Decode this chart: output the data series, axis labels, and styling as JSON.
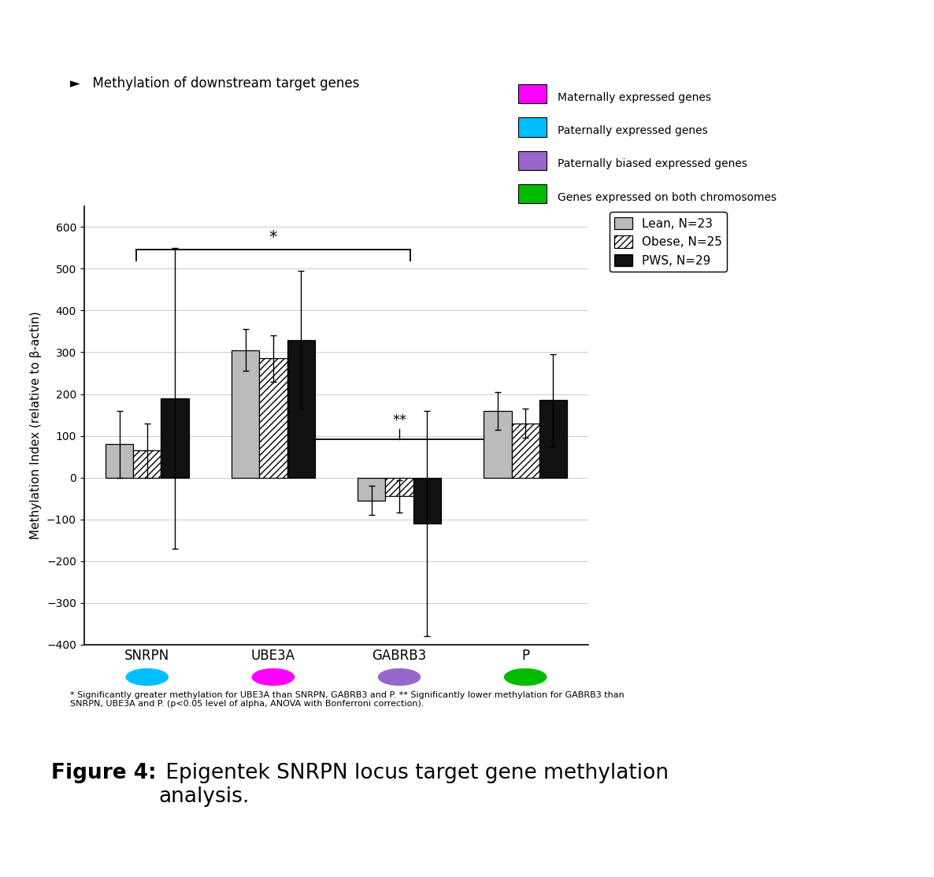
{
  "categories": [
    "SNRPN",
    "UBE3A",
    "GABRB3",
    "P"
  ],
  "category_colors": [
    "#00BFFF",
    "#FF00FF",
    "#9966CC",
    "#00BB00"
  ],
  "bar_values": {
    "Lean": [
      80,
      305,
      -55,
      160
    ],
    "Obese": [
      65,
      285,
      -45,
      130
    ],
    "PWS": [
      190,
      330,
      -110,
      185
    ]
  },
  "bar_errors": {
    "Lean": [
      80,
      50,
      35,
      45
    ],
    "Obese": [
      65,
      55,
      38,
      35
    ],
    "PWS": [
      360,
      165,
      270,
      110
    ]
  },
  "bar_colors": {
    "Lean": "#BBBBBB",
    "Obese": "#FFFFFF",
    "PWS": "#111111"
  },
  "ylabel": "Methylation Index (relative to β-actin)",
  "ylim": [
    -400,
    650
  ],
  "yticks": [
    -400,
    -300,
    -200,
    -100,
    0,
    100,
    200,
    300,
    400,
    500,
    600
  ],
  "color_legend": [
    {
      "label": "Maternally expressed genes",
      "color": "#FF00FF"
    },
    {
      "label": "Paternally expressed genes",
      "color": "#00BFFF"
    },
    {
      "label": "Paternally biased expressed genes",
      "color": "#9966CC"
    },
    {
      "label": "Genes expressed on both chromosomes",
      "color": "#00BB00"
    }
  ],
  "bar_legend": [
    {
      "label": "Lean, N=23",
      "color": "#BBBBBB",
      "hatch": ""
    },
    {
      "label": "Obese, N=25",
      "color": "#FFFFFF",
      "hatch": "////"
    },
    {
      "label": "PWS, N=29",
      "color": "#111111",
      "hatch": ""
    }
  ],
  "subtitle": "Methylation of downstream target genes",
  "footnote": "* Significantly greater methylation for UBE3A than SNRPN, GABRB3 and P. ** Significantly lower methylation for GABRB3 than\nSNRPN, UBE3A and P. (p<0.05 level of alpha, ANOVA with Bonferroni correction).",
  "figure_caption_bold": "Figure 4:",
  "figure_caption_rest": " Epigentek SNRPN locus target gene methylation\nanalysis.",
  "background_color": "#FFFFFF",
  "border_color": "#6B8FC0"
}
